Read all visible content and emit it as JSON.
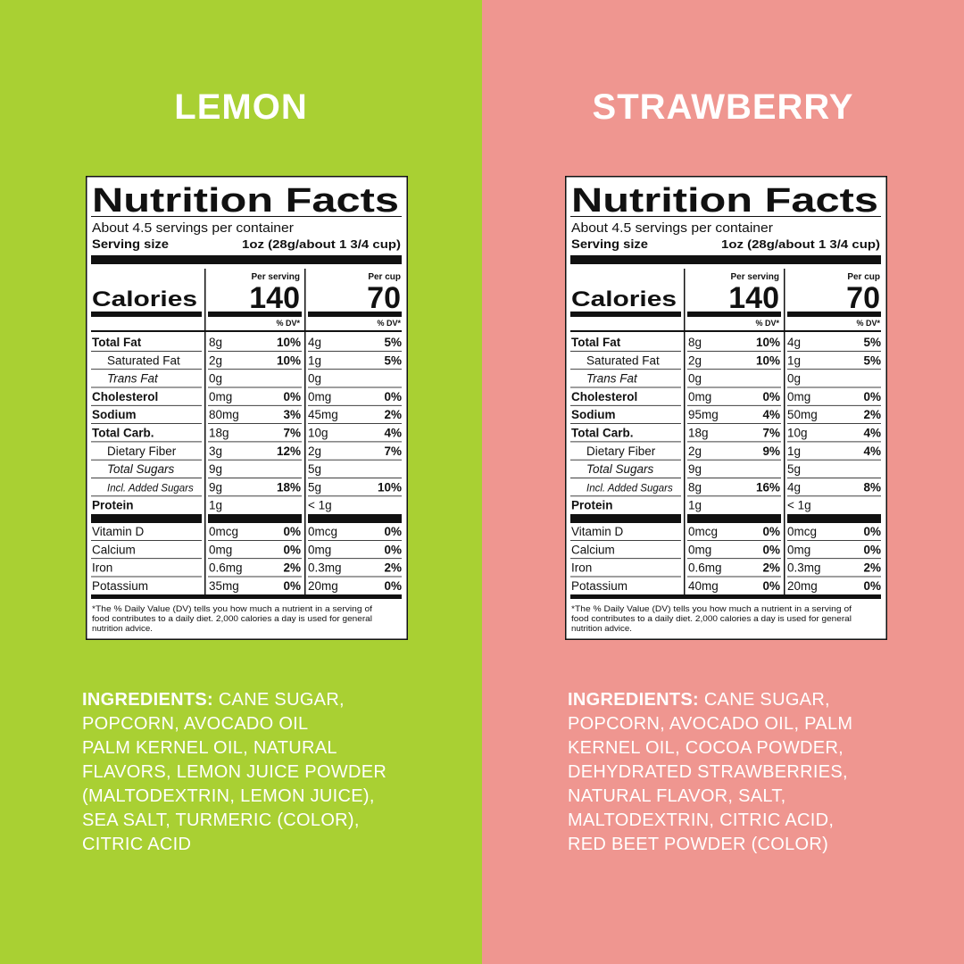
{
  "panels": [
    {
      "title": "LEMON",
      "facts": {
        "heading": "Nutrition Facts",
        "servings": "About 4.5 servings per container",
        "serving_size_label": "Serving size",
        "serving_size": "1oz (28g/about 1 3/4 cup)",
        "calories_label": "Calories",
        "col1_label": "Per serving",
        "col1_calories": "140",
        "col2_label": "Per cup",
        "col2_calories": "70",
        "dv_header": "% DV*",
        "rows": [
          [
            "Total Fat",
            "8g",
            "10%",
            "4g",
            "5%"
          ],
          [
            "Saturated Fat",
            "2g",
            "10%",
            "1g",
            "5%"
          ],
          [
            "Trans Fat",
            "0g",
            null,
            "0g",
            null
          ],
          [
            "Cholesterol",
            "0mg",
            "0%",
            "0mg",
            "0%"
          ],
          [
            "Sodium",
            "80mg",
            "3%",
            "45mg",
            "2%"
          ],
          [
            "Total Carb.",
            "18g",
            "7%",
            "10g",
            "4%"
          ],
          [
            "Dietary Fiber",
            "3g",
            "12%",
            "2g",
            "7%"
          ],
          [
            "Total Sugars",
            "9g",
            null,
            "5g",
            null
          ],
          [
            "Incl. Added Sugars",
            "9g",
            "18%",
            "5g",
            "10%"
          ],
          [
            "Protein",
            "1g",
            null,
            "< 1g",
            null
          ],
          [
            "Vitamin D",
            "0mcg",
            "0%",
            "0mcg",
            "0%"
          ],
          [
            "Calcium",
            "0mg",
            "0%",
            "0mg",
            "0%"
          ],
          [
            "Iron",
            "0.6mg",
            "2%",
            "0.3mg",
            "2%"
          ],
          [
            "Potassium",
            "35mg",
            "0%",
            "20mg",
            "0%"
          ]
        ],
        "footnote": [
          "*The % Daily Value (DV) tells you how much a nutrient in a serving of",
          "food contributes to a daily diet. 2,000 calories a day is used for general",
          "nutrition advice."
        ]
      },
      "ingredients": {
        "label": "INGREDIENTS:",
        "lines": [
          "CANE SUGAR,",
          "POPCORN, AVOCADO OIL",
          "PALM KERNEL OIL, NATURAL",
          "FLAVORS, LEMON JUICE POWDER",
          "(MALTODEXTRIN, LEMON JUICE),",
          "SEA SALT, TURMERIC (COLOR),",
          "CITRIC ACID"
        ]
      }
    },
    {
      "title": "STRAWBERRY",
      "facts": {
        "heading": "Nutrition Facts",
        "servings": "About 4.5 servings per container",
        "serving_size_label": "Serving size",
        "serving_size": "1oz (28g/about 1 3/4 cup)",
        "calories_label": "Calories",
        "col1_label": "Per serving",
        "col1_calories": "140",
        "col2_label": "Per cup",
        "col2_calories": "70",
        "dv_header": "% DV*",
        "rows": [
          [
            "Total Fat",
            "8g",
            "10%",
            "4g",
            "5%"
          ],
          [
            "Saturated Fat",
            "2g",
            "10%",
            "1g",
            "5%"
          ],
          [
            "Trans Fat",
            "0g",
            null,
            "0g",
            null
          ],
          [
            "Cholesterol",
            "0mg",
            "0%",
            "0mg",
            "0%"
          ],
          [
            "Sodium",
            "95mg",
            "4%",
            "50mg",
            "2%"
          ],
          [
            "Total Carb.",
            "18g",
            "7%",
            "10g",
            "4%"
          ],
          [
            "Dietary Fiber",
            "2g",
            "9%",
            "1g",
            "4%"
          ],
          [
            "Total Sugars",
            "9g",
            null,
            "5g",
            null
          ],
          [
            "Incl. Added Sugars",
            "8g",
            "16%",
            "4g",
            "8%"
          ],
          [
            "Protein",
            "1g",
            null,
            "< 1g",
            null
          ],
          [
            "Vitamin D",
            "0mcg",
            "0%",
            "0mcg",
            "0%"
          ],
          [
            "Calcium",
            "0mg",
            "0%",
            "0mg",
            "0%"
          ],
          [
            "Iron",
            "0.6mg",
            "2%",
            "0.3mg",
            "2%"
          ],
          [
            "Potassium",
            "40mg",
            "0%",
            "20mg",
            "0%"
          ]
        ],
        "footnote": [
          "*The % Daily Value (DV) tells you how much a nutrient in a serving of",
          "food contributes to a daily diet. 2,000 calories a day is used for general",
          "nutrition advice."
        ]
      },
      "ingredients": {
        "label": "INGREDIENTS:",
        "lines": [
          "CANE SUGAR,",
          "POPCORN, AVOCADO OIL, PALM",
          "KERNEL OIL, COCOA POWDER,",
          "DEHYDRATED STRAWBERRIES,",
          "NATURAL FLAVOR, SALT,",
          "MALTODEXTRIN, CITRIC ACID,",
          "RED BEET POWDER (COLOR)"
        ]
      }
    }
  ]
}
